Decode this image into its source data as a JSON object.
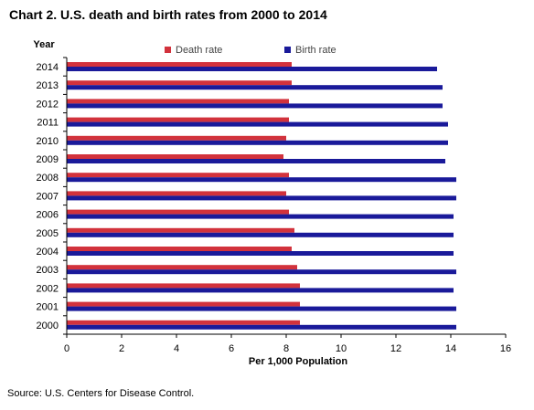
{
  "colors": {
    "death": "#d2323c",
    "birth": "#1a1a9a",
    "axis": "#000000"
  },
  "chart_data": {
    "type": "bar",
    "orientation": "horizontal",
    "title": "Chart 2. U.S. death and birth rates from 2000 to 2014",
    "ylabel": "Year",
    "xlabel": "Per 1,000 Population",
    "source": "Source: U.S. Centers for Disease Control.",
    "xlim": [
      0,
      16
    ],
    "xticks": [
      "0",
      "2",
      "4",
      "6",
      "8",
      "10",
      "12",
      "14",
      "16"
    ],
    "grid": false,
    "legend_position": "top",
    "categories": [
      "2014",
      "2013",
      "2012",
      "2011",
      "2010",
      "2009",
      "2008",
      "2007",
      "2006",
      "2005",
      "2004",
      "2003",
      "2002",
      "2001",
      "2000"
    ],
    "series": [
      {
        "name": "Death rate",
        "color": "#d2323c",
        "values": [
          8.2,
          8.2,
          8.1,
          8.1,
          8.0,
          7.9,
          8.1,
          8.0,
          8.1,
          8.3,
          8.2,
          8.4,
          8.5,
          8.5,
          8.5
        ]
      },
      {
        "name": "Birth rate",
        "color": "#1a1a9a",
        "values": [
          13.5,
          13.7,
          13.7,
          13.9,
          13.9,
          13.8,
          14.2,
          14.2,
          14.1,
          14.1,
          14.1,
          14.2,
          14.1,
          14.2,
          14.2
        ]
      }
    ]
  }
}
